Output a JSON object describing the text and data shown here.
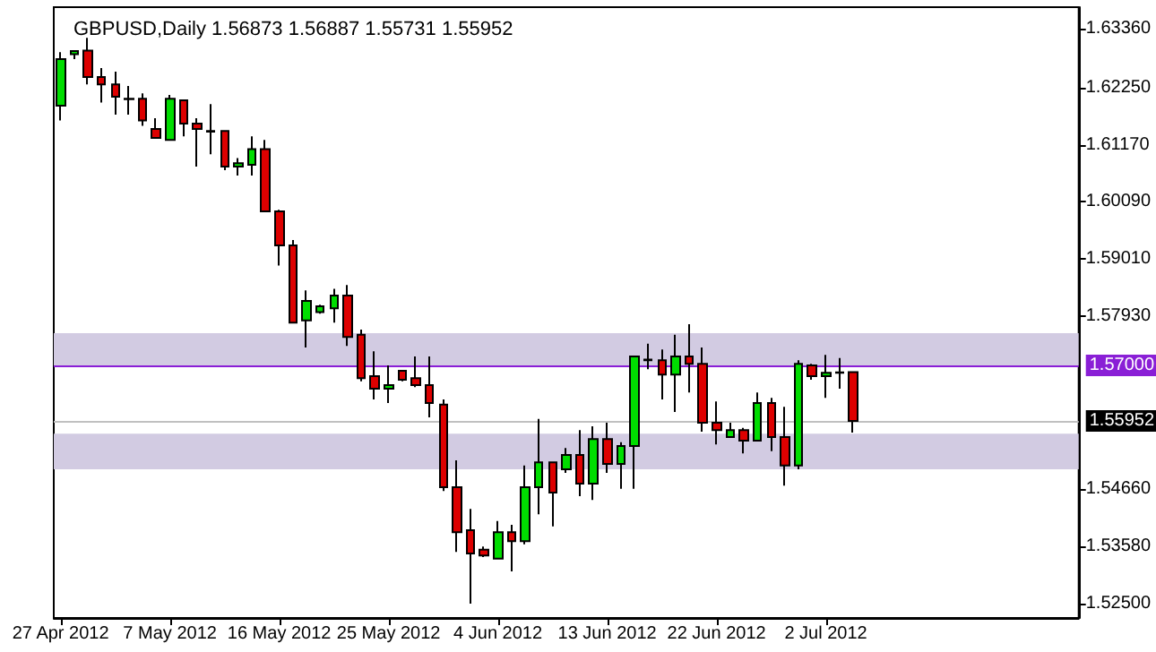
{
  "chart_data": {
    "type": "candlestick",
    "title": "GBPUSD,Daily 1.56873 1.56887 1.55731 1.55952",
    "categories": [
      "27 Apr 2012",
      null,
      null,
      null,
      null,
      null,
      null,
      null,
      "7 May 2012",
      null,
      null,
      null,
      null,
      null,
      null,
      null,
      "16 May 2012",
      null,
      null,
      null,
      null,
      null,
      null,
      null,
      "25 May 2012",
      null,
      null,
      null,
      null,
      null,
      null,
      null,
      "4 Jun 2012",
      null,
      null,
      null,
      null,
      null,
      null,
      null,
      "13 Jun 2012",
      null,
      null,
      null,
      null,
      null,
      null,
      null,
      "22 Jun 2012",
      null,
      null,
      null,
      null,
      null,
      null,
      null,
      "2 Jul 2012",
      null,
      null,
      null,
      null,
      null,
      null,
      null,
      null,
      null,
      null,
      null,
      null,
      null,
      null,
      null,
      null,
      null,
      null
    ],
    "ohlc": [
      [
        1.6191,
        1.6292,
        1.6163,
        1.6279
      ],
      [
        1.6288,
        1.6295,
        1.6279,
        1.6294
      ],
      [
        1.6295,
        1.6319,
        1.6231,
        1.6245
      ],
      [
        1.6245,
        1.6262,
        1.6197,
        1.6231
      ],
      [
        1.6231,
        1.6255,
        1.6174,
        1.6208
      ],
      [
        1.6204,
        1.6228,
        1.6174,
        1.6203
      ],
      [
        1.6204,
        1.6214,
        1.6153,
        1.6163
      ],
      [
        1.6147,
        1.6167,
        1.613,
        1.613
      ],
      [
        1.6126,
        1.6211,
        1.6126,
        1.6204
      ],
      [
        1.6201,
        1.6201,
        1.6133,
        1.6157
      ],
      [
        1.6157,
        1.6167,
        1.6076,
        1.6147
      ],
      [
        1.6143,
        1.6194,
        1.6099,
        1.6142
      ],
      [
        1.6143,
        1.6143,
        1.6069,
        1.6076
      ],
      [
        1.6076,
        1.6092,
        1.6059,
        1.6082
      ],
      [
        1.6079,
        1.6133,
        1.6059,
        1.6109
      ],
      [
        1.6109,
        1.6126,
        1.5991,
        1.5991
      ],
      [
        1.5991,
        1.5994,
        1.5889,
        1.5927
      ],
      [
        1.5927,
        1.5937,
        1.5781,
        1.5781
      ],
      [
        1.5785,
        1.5842,
        1.5734,
        1.5822
      ],
      [
        1.5801,
        1.5815,
        1.5798,
        1.5812
      ],
      [
        1.5808,
        1.5845,
        1.5781,
        1.5832
      ],
      [
        1.5832,
        1.5852,
        1.5737,
        1.5754
      ],
      [
        1.5758,
        1.5768,
        1.567,
        1.5676
      ],
      [
        1.568,
        1.5727,
        1.5636,
        1.5656
      ],
      [
        1.5656,
        1.57,
        1.5629,
        1.5663
      ],
      [
        1.569,
        1.569,
        1.567,
        1.5673
      ],
      [
        1.5676,
        1.5717,
        1.5659,
        1.5663
      ],
      [
        1.5663,
        1.5717,
        1.5602,
        1.5629
      ],
      [
        1.5626,
        1.5636,
        1.5463,
        1.547
      ],
      [
        1.547,
        1.5521,
        1.5348,
        1.5385
      ],
      [
        1.5389,
        1.5429,
        1.525,
        1.5345
      ],
      [
        1.5352,
        1.5358,
        1.5338,
        1.5341
      ],
      [
        1.5335,
        1.5406,
        1.5335,
        1.5385
      ],
      [
        1.5385,
        1.5399,
        1.5311,
        1.5368
      ],
      [
        1.5368,
        1.5511,
        1.5362,
        1.547
      ],
      [
        1.547,
        1.5599,
        1.5419,
        1.5517
      ],
      [
        1.5517,
        1.5517,
        1.5396,
        1.546
      ],
      [
        1.5504,
        1.5544,
        1.5497,
        1.5531
      ],
      [
        1.5531,
        1.5578,
        1.5453,
        1.5477
      ],
      [
        1.5477,
        1.5585,
        1.5446,
        1.5561
      ],
      [
        1.5561,
        1.5592,
        1.5497,
        1.5514
      ],
      [
        1.5514,
        1.5555,
        1.5467,
        1.5548
      ],
      [
        1.5548,
        1.5717,
        1.5467,
        1.5717
      ],
      [
        1.571,
        1.5741,
        1.5693,
        1.5711
      ],
      [
        1.571,
        1.573,
        1.5636,
        1.5683
      ],
      [
        1.5683,
        1.5758,
        1.5612,
        1.5717
      ],
      [
        1.5717,
        1.5778,
        1.5649,
        1.5703
      ],
      [
        1.5703,
        1.5734,
        1.5575,
        1.5592
      ],
      [
        1.5592,
        1.5632,
        1.5551,
        1.5578
      ],
      [
        1.5565,
        1.5592,
        1.5565,
        1.5578
      ],
      [
        1.5578,
        1.5582,
        1.5534,
        1.5558
      ],
      [
        1.5558,
        1.5649,
        1.5558,
        1.5629
      ],
      [
        1.5629,
        1.5639,
        1.5538,
        1.5565
      ],
      [
        1.5565,
        1.5622,
        1.5473,
        1.5511
      ],
      [
        1.5511,
        1.571,
        1.5504,
        1.5703
      ],
      [
        1.57,
        1.5703,
        1.5673,
        1.568
      ],
      [
        1.568,
        1.572,
        1.5639,
        1.5686
      ],
      [
        1.5686,
        1.5714,
        1.5656,
        1.5687
      ],
      [
        1.56873,
        1.56887,
        1.55731,
        1.55952
      ],
      null,
      null,
      null,
      null,
      null,
      null,
      null,
      null,
      null,
      null,
      null,
      null,
      null,
      null,
      null,
      null
    ],
    "colors": [
      "#00dd00",
      "#00dd00",
      "#dd0000",
      "#dd0000",
      "#dd0000",
      "#dd0000",
      "#dd0000",
      "#dd0000",
      "#00dd00",
      "#dd0000",
      "#dd0000",
      "#dd0000",
      "#dd0000",
      "#00dd00",
      "#00dd00",
      "#dd0000",
      "#dd0000",
      "#dd0000",
      "#00dd00",
      "#00dd00",
      "#00dd00",
      "#dd0000",
      "#dd0000",
      "#dd0000",
      "#00dd00",
      "#dd0000",
      "#dd0000",
      "#dd0000",
      "#dd0000",
      "#dd0000",
      "#dd0000",
      "#dd0000",
      "#00dd00",
      "#dd0000",
      "#00dd00",
      "#00dd00",
      "#dd0000",
      "#00dd00",
      "#dd0000",
      "#00dd00",
      "#dd0000",
      "#00dd00",
      "#00dd00",
      "#00dd00",
      "#dd0000",
      "#00dd00",
      "#dd0000",
      "#dd0000",
      "#dd0000",
      "#00dd00",
      "#dd0000",
      "#00dd00",
      "#dd0000",
      "#dd0000",
      "#00dd00",
      "#dd0000",
      "#00dd00",
      "#00dd00",
      "#dd0000",
      null,
      null,
      null,
      null,
      null,
      null,
      null,
      null,
      null,
      null,
      null,
      null,
      null,
      null,
      null,
      null
    ],
    "ylim": [
      1.5223,
      1.6377
    ],
    "yticks": [
      {
        "value": 1.525,
        "label": "1.52500"
      },
      {
        "value": 1.5358,
        "label": "1.53580"
      },
      {
        "value": 1.5466,
        "label": "1.54660"
      },
      {
        "value": 1.5793,
        "label": "1.57930"
      },
      {
        "value": 1.5901,
        "label": "1.59010"
      },
      {
        "value": 1.6009,
        "label": "1.60090"
      },
      {
        "value": 1.6117,
        "label": "1.61170"
      },
      {
        "value": 1.6225,
        "label": "1.62250"
      },
      {
        "value": 1.6336,
        "label": "1.63360"
      }
    ],
    "ref_lines": [
      {
        "axis": "y",
        "value": 1.57,
        "label": "1.57000",
        "color": "#8a1fd6"
      },
      {
        "axis": "y",
        "value": 1.55952,
        "label": "1.55952",
        "color": "#c0c0c0"
      }
    ],
    "bands": [
      {
        "axis": "y",
        "from": 1.57,
        "to": 1.5761,
        "color": "#d2cbe2"
      },
      {
        "axis": "y",
        "from": 1.5504,
        "to": 1.5571,
        "color": "#d2cbe2"
      }
    ],
    "grid": false
  }
}
